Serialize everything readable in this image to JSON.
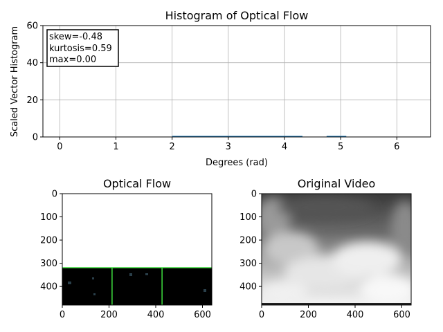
{
  "figure": {
    "colors": {
      "series": "#1f77b4",
      "grid": "#b0b0b0",
      "green_line": "#3ee03e",
      "axis": "#000000",
      "background": "#ffffff"
    }
  },
  "chart_data": [
    {
      "type": "bar",
      "title": "Histogram of Optical Flow",
      "xlabel": "Degrees (rad)",
      "ylabel": "Scaled Vector Histogram",
      "xlim": [
        -0.3,
        6.6
      ],
      "ylim": [
        0,
        60
      ],
      "xticks": [
        0,
        1,
        2,
        3,
        4,
        5,
        6
      ],
      "yticks": [
        0,
        20,
        40,
        60
      ],
      "grid": true,
      "annotation": [
        "skew=-0.48",
        "kurtosis=0.59",
        "max=0.00"
      ],
      "annotation_placement": "top-left",
      "series": [
        {
          "values": [
            {
              "x0": 2.0,
              "x1": 4.32,
              "y": 0.2
            },
            {
              "x0": 4.75,
              "x1": 5.1,
              "y": 0.2
            }
          ]
        }
      ]
    },
    {
      "type": "image",
      "title": "Optical Flow",
      "xlim": [
        0,
        640
      ],
      "ylim": [
        480,
        0
      ],
      "xticks": [
        0,
        200,
        400,
        600
      ],
      "yticks": [
        0,
        100,
        200,
        300,
        400
      ],
      "content": "black lower band below row 320 with two vertical green lines near x=213 and x=427"
    },
    {
      "type": "image",
      "title": "Original Video",
      "xlim": [
        0,
        640
      ],
      "ylim": [
        480,
        0
      ],
      "xticks": [
        0,
        200,
        400,
        600
      ],
      "yticks": [
        0,
        100,
        200,
        300,
        400
      ],
      "content": "grayscale video frame, bright cloudy lower half"
    }
  ]
}
